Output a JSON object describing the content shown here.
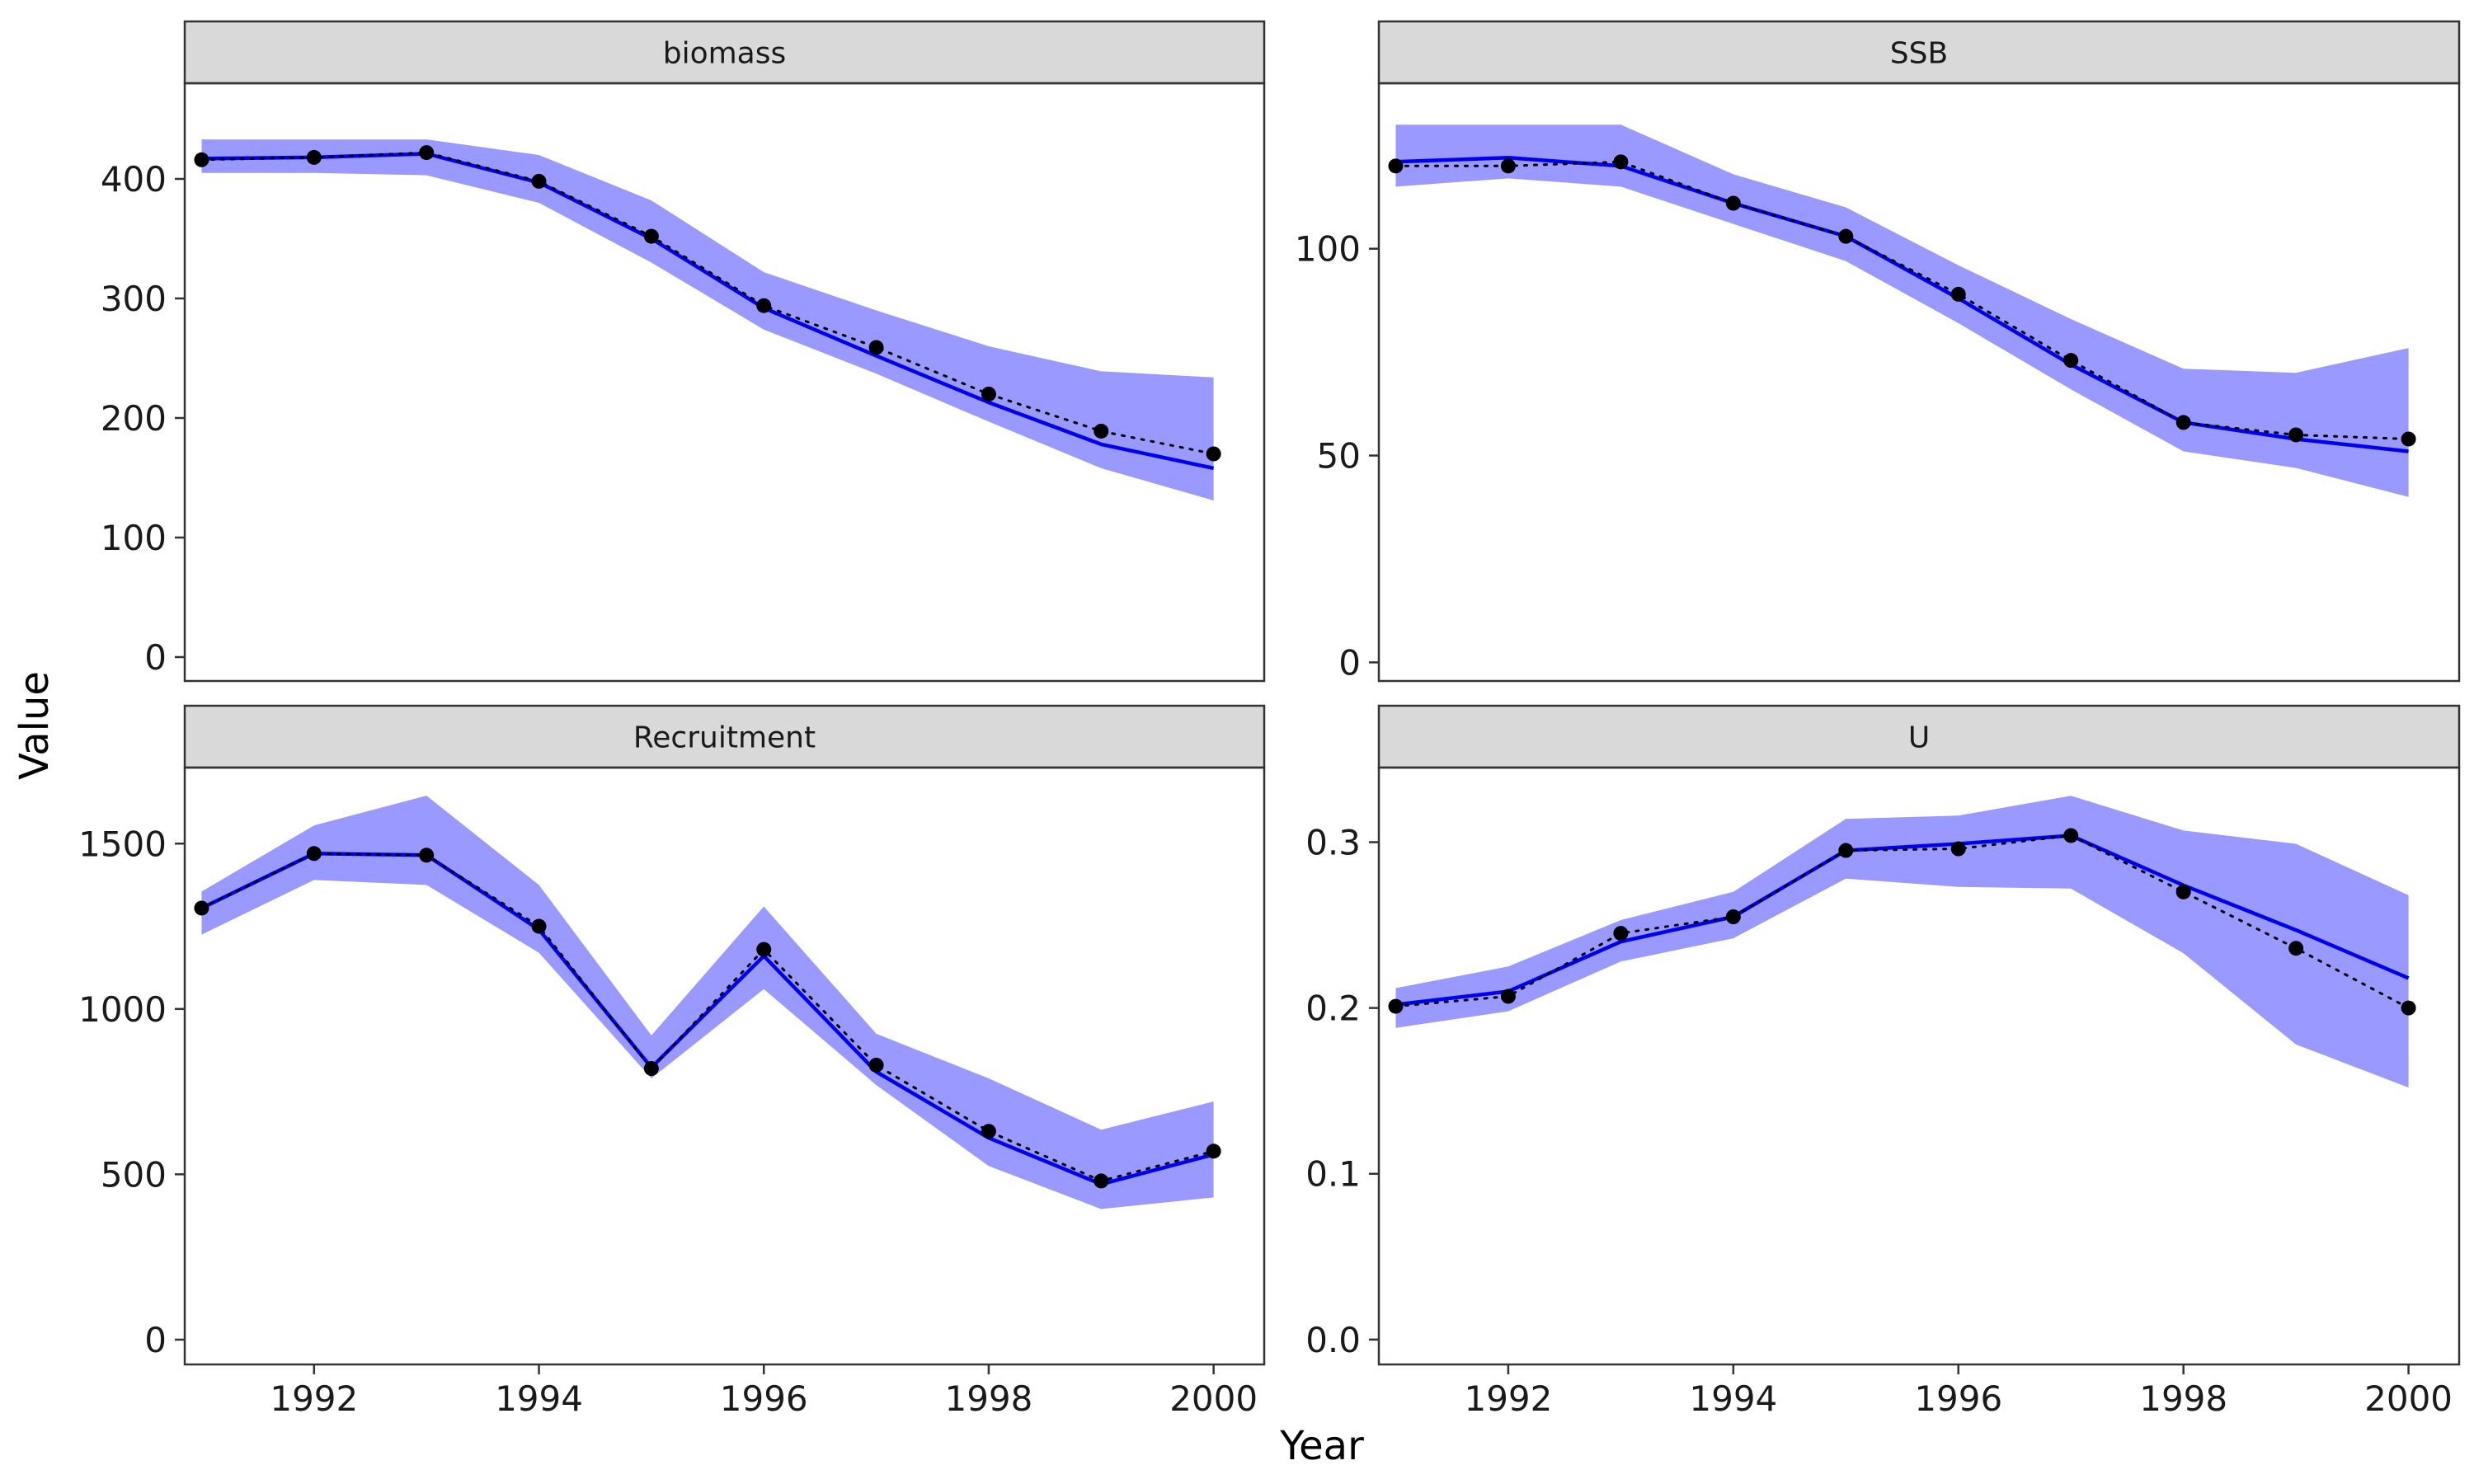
{
  "chart_data": {
    "type": "line",
    "xlabel": "Year",
    "ylabel": "Value",
    "x": [
      1991,
      1992,
      1993,
      1994,
      1995,
      1996,
      1997,
      1998,
      1999,
      2000
    ],
    "xlim": [
      1990.85,
      2000.45
    ],
    "xticks": [
      1992,
      1994,
      1996,
      1998,
      2000
    ],
    "colors": {
      "ribbon": "#9999ff",
      "line": "#0000ee",
      "points": "#000000",
      "strip_fill": "#d9d9d9",
      "strip_border": "#333333"
    },
    "grid": false,
    "panels": [
      {
        "label": "biomass",
        "ylim": [
          -20,
          480
        ],
        "yticks": [
          0,
          100,
          200,
          300,
          400
        ],
        "fitted": [
          417,
          418,
          421,
          397,
          350,
          292,
          252,
          213,
          178,
          158
        ],
        "lower": [
          405,
          405,
          403,
          380,
          330,
          274,
          237,
          197,
          158,
          131
        ],
        "upper": [
          433,
          433,
          433,
          420,
          382,
          322,
          290,
          260,
          239,
          234
        ],
        "observed": [
          416,
          418,
          422,
          398,
          352,
          294,
          259,
          220,
          189,
          170
        ]
      },
      {
        "label": "SSB",
        "ylim": [
          -4.5,
          140
        ],
        "yticks": [
          0,
          50,
          100
        ],
        "fitted": [
          121,
          122,
          120,
          111,
          103,
          88,
          72,
          58,
          54,
          51
        ],
        "lower": [
          115,
          117,
          115,
          106,
          97,
          82,
          66,
          51,
          47,
          40
        ],
        "upper": [
          130,
          130,
          130,
          118,
          110,
          96,
          83,
          71,
          70,
          76
        ],
        "observed": [
          120,
          120,
          121,
          111,
          103,
          89,
          73,
          58,
          55,
          54
        ]
      },
      {
        "label": "Recruitment",
        "ylim": [
          -75,
          1730
        ],
        "yticks": [
          0,
          500,
          1000,
          1500
        ],
        "fitted": [
          1305,
          1470,
          1465,
          1240,
          823,
          1160,
          810,
          610,
          470,
          560
        ],
        "lower": [
          1225,
          1390,
          1375,
          1170,
          790,
          1060,
          770,
          525,
          395,
          430
        ],
        "upper": [
          1355,
          1555,
          1645,
          1375,
          920,
          1310,
          925,
          790,
          635,
          720
        ],
        "observed": [
          1305,
          1470,
          1465,
          1250,
          820,
          1180,
          830,
          630,
          480,
          570
        ]
      },
      {
        "label": "U",
        "ylim": [
          -0.015,
          0.345
        ],
        "yticks": [
          0.0,
          0.1,
          0.2,
          0.3
        ],
        "ytick_labels": [
          "0.0",
          "0.1",
          "0.2",
          "0.3"
        ],
        "fitted": [
          0.202,
          0.21,
          0.24,
          0.255,
          0.295,
          0.299,
          0.304,
          0.274,
          0.247,
          0.218
        ],
        "lower": [
          0.188,
          0.198,
          0.228,
          0.242,
          0.278,
          0.273,
          0.272,
          0.233,
          0.178,
          0.152
        ],
        "upper": [
          0.212,
          0.225,
          0.253,
          0.27,
          0.314,
          0.316,
          0.328,
          0.307,
          0.299,
          0.268
        ],
        "observed": [
          0.201,
          0.207,
          0.245,
          0.255,
          0.295,
          0.296,
          0.304,
          0.27,
          0.236,
          0.2
        ]
      }
    ]
  }
}
